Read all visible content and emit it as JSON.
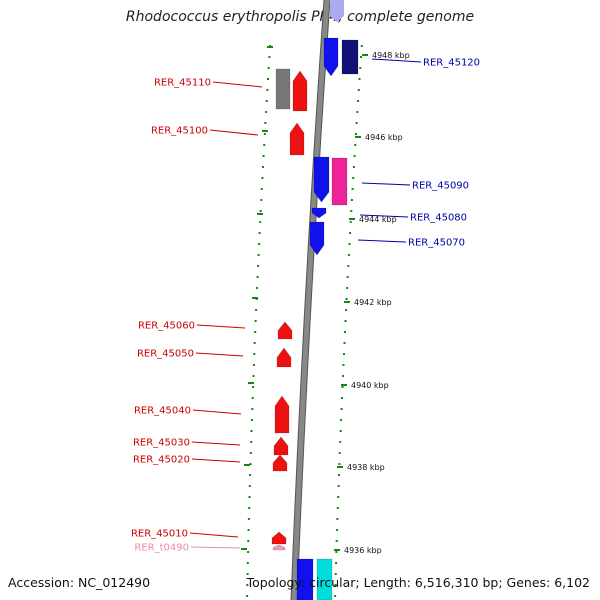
{
  "header": {
    "title": "Rhodococcus erythropolis PR4, complete genome"
  },
  "footer": {
    "accession": "Accession: NC_012490",
    "topology": "Topology: circular; Length: 6,516,310 bp; Genes: 6,102"
  },
  "colors": {
    "backbone": "#888888",
    "minus_gene": "#ee1111",
    "plus_gene": "#1111ee",
    "dark_gene": "#111177",
    "grey_gene": "#777777",
    "pink_gene": "#ee2299",
    "cyan_gene": "#00dddd",
    "light_blue_gene": "#aaaaee",
    "trna": "#ee99bb",
    "tick": "#118811"
  },
  "scale_ticks": [
    {
      "label": "4948 kbp"
    },
    {
      "label": "4946 kbp"
    },
    {
      "label": "4944 kbp"
    },
    {
      "label": "4942 kbp"
    },
    {
      "label": "4940 kbp"
    },
    {
      "label": "4938 kbp"
    },
    {
      "label": "4936 kbp"
    }
  ],
  "gene_labels_left": [
    {
      "name": "RER_45110",
      "color": "#cc0000"
    },
    {
      "name": "RER_45100",
      "color": "#cc0000"
    },
    {
      "name": "RER_45060",
      "color": "#cc0000"
    },
    {
      "name": "RER_45050",
      "color": "#cc0000"
    },
    {
      "name": "RER_45040",
      "color": "#cc0000"
    },
    {
      "name": "RER_45030",
      "color": "#cc0000"
    },
    {
      "name": "RER_45020",
      "color": "#cc0000"
    },
    {
      "name": "RER_45010",
      "color": "#cc0000"
    },
    {
      "name": "RER_t0490",
      "color": "#ee88aa"
    }
  ],
  "gene_labels_right": [
    {
      "name": "RER_45120",
      "color": "#0000aa"
    },
    {
      "name": "RER_45090",
      "color": "#0000aa"
    },
    {
      "name": "RER_45080",
      "color": "#0000aa"
    },
    {
      "name": "RER_45070",
      "color": "#0000aa"
    }
  ]
}
